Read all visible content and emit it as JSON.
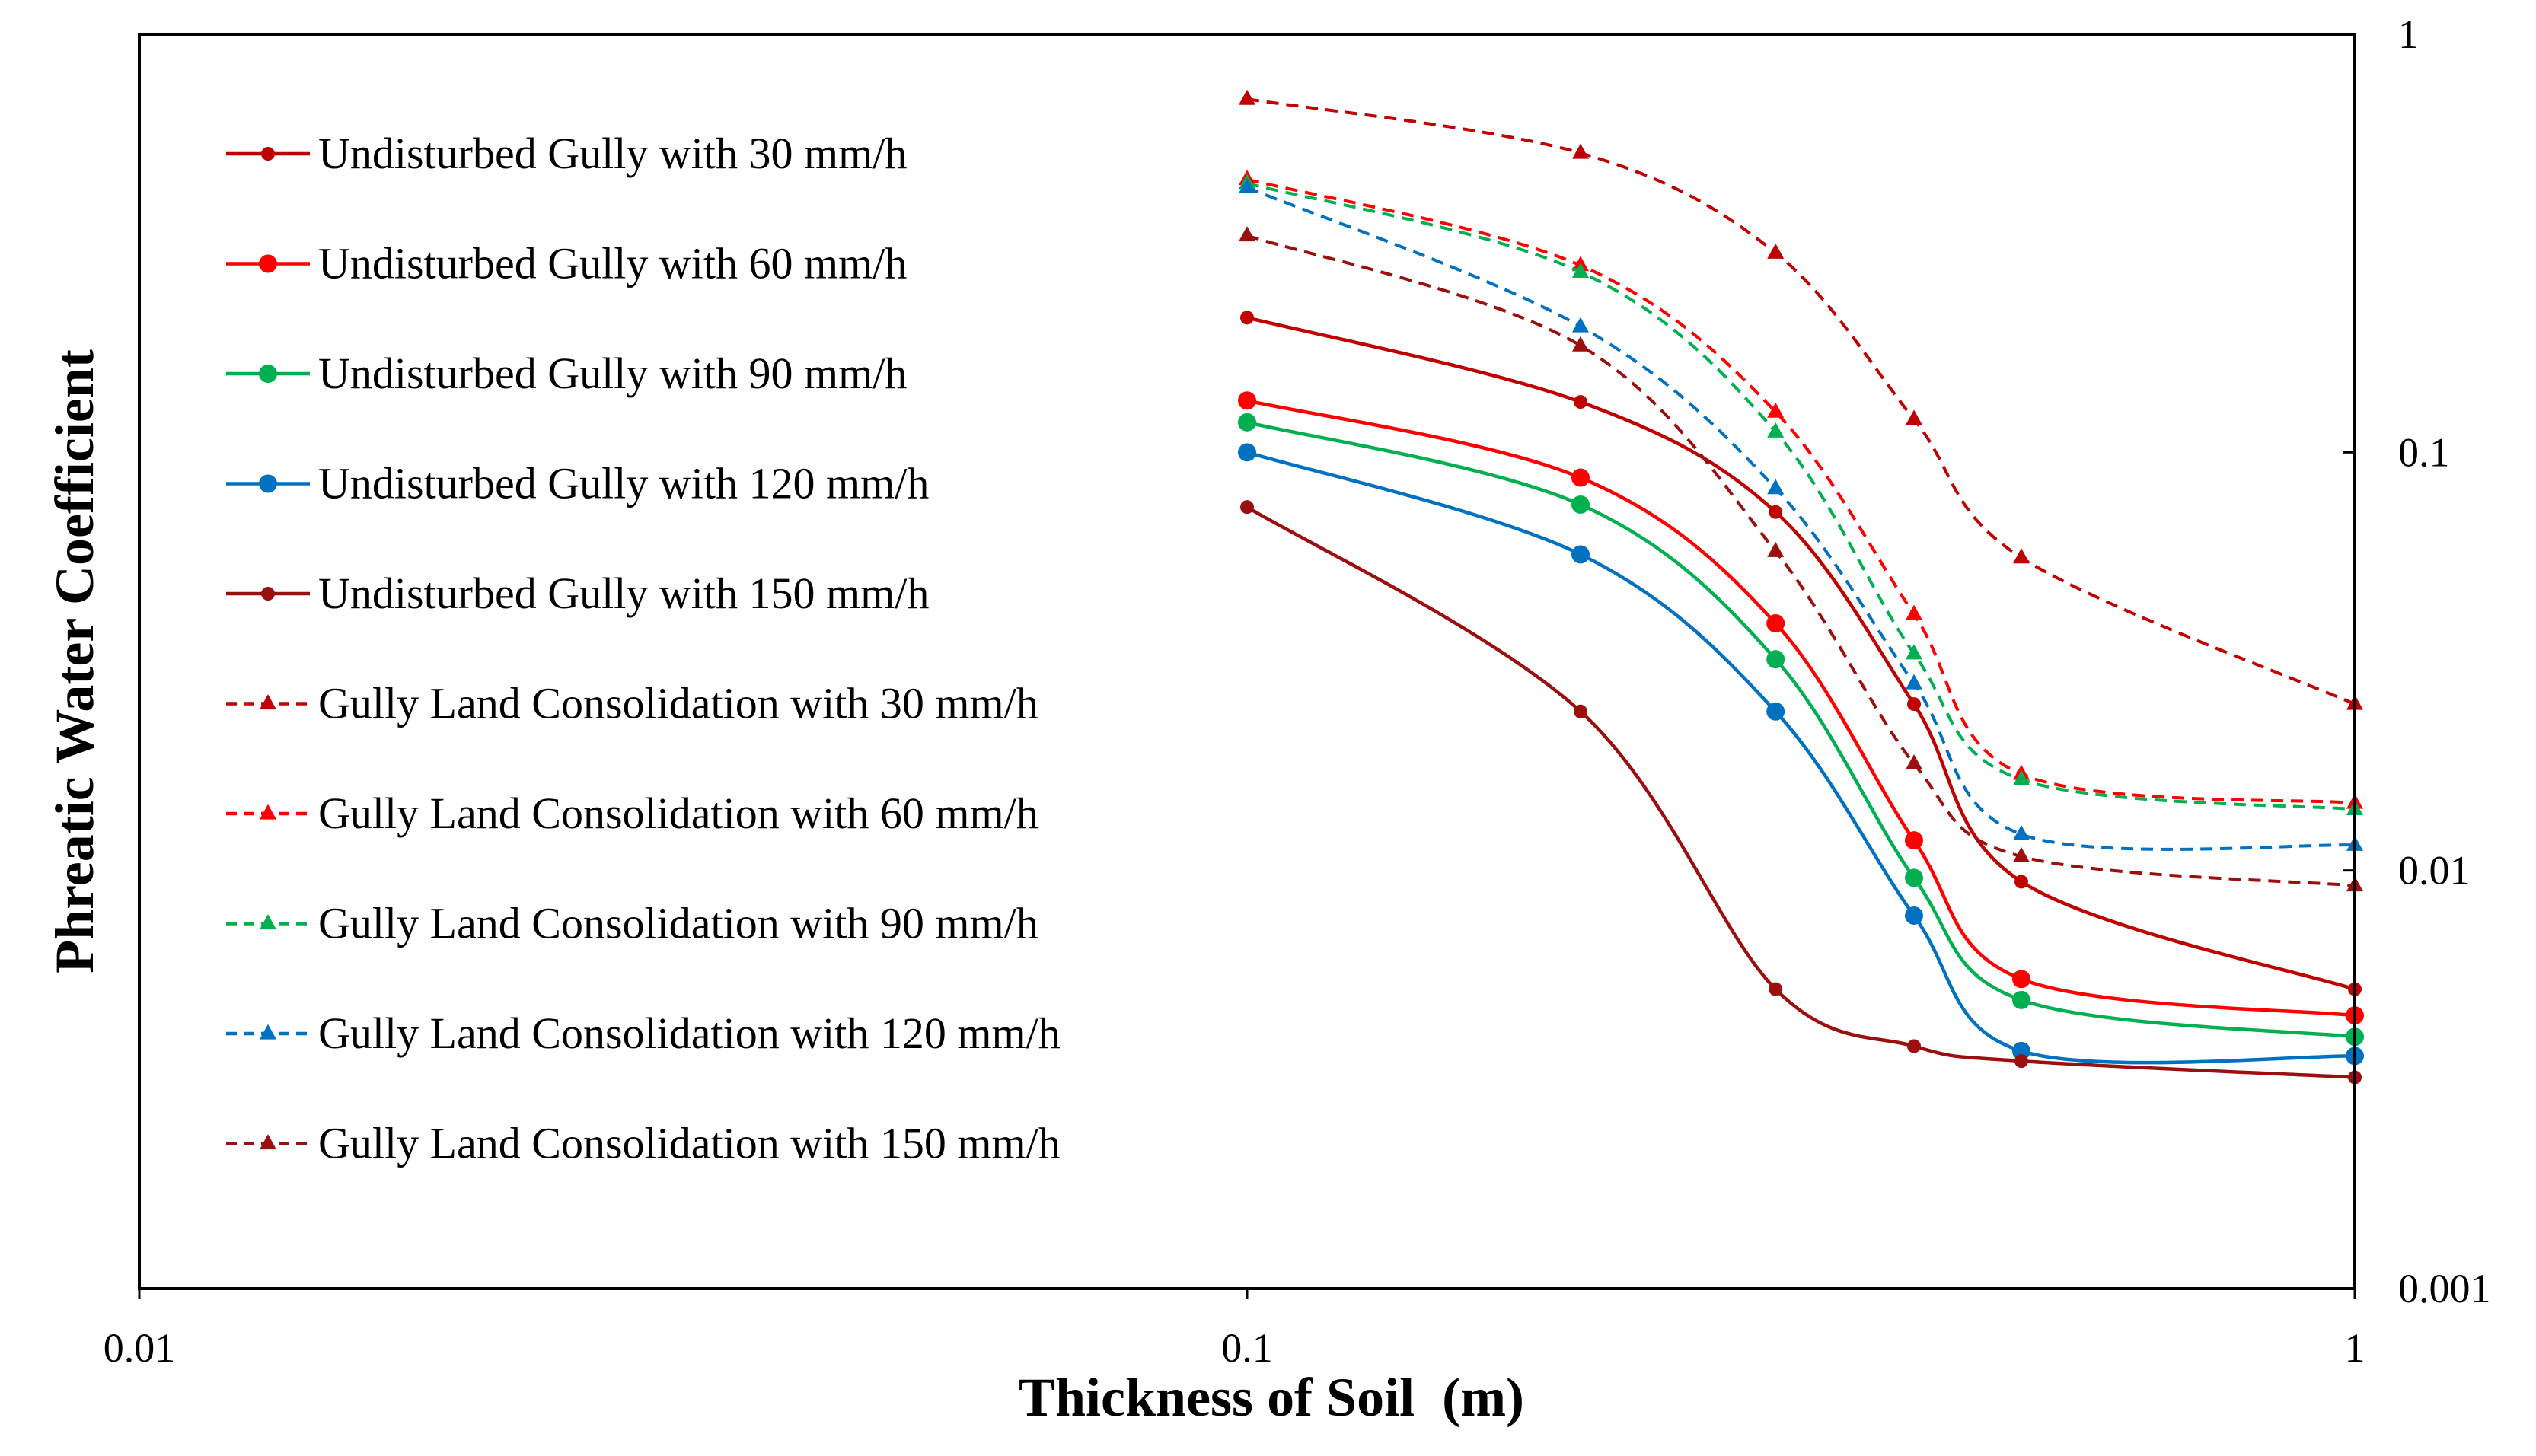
{
  "chart_data": {
    "type": "line",
    "title": "",
    "xlabel": "Thickness of Soil  (m)",
    "ylabel": "Phreatic Water Coefficient",
    "x_scale": "log",
    "y_scale": "log",
    "xlim": [
      0.01,
      1
    ],
    "ylim": [
      0.001,
      1
    ],
    "x_ticks": [
      0.01,
      0.1,
      1
    ],
    "x_tick_labels": [
      "0.01",
      "0.1",
      "1"
    ],
    "y_ticks": [
      0.001,
      0.01,
      0.1,
      1
    ],
    "y_tick_labels": [
      "0.001",
      "0.01",
      "0.1",
      "1"
    ],
    "y_axis_side": "right",
    "grid": false,
    "legend_position": "top-left",
    "x": [
      0.1,
      0.2,
      0.3,
      0.4,
      0.5,
      1.0
    ],
    "series": [
      {
        "name": "Undisturbed Gully with 30 mm/h",
        "color": "#c00000",
        "dashed": false,
        "marker": "circle",
        "marker_size": "small",
        "values": [
          0.21,
          0.132,
          0.072,
          0.025,
          0.0094,
          0.0052
        ]
      },
      {
        "name": "Undisturbed Gully with 60 mm/h",
        "color": "#ff0000",
        "dashed": false,
        "marker": "circle",
        "marker_size": "large",
        "values": [
          0.133,
          0.087,
          0.039,
          0.0118,
          0.0055,
          0.0045
        ]
      },
      {
        "name": "Undisturbed Gully with 90 mm/h",
        "color": "#00b050",
        "dashed": false,
        "marker": "circle",
        "marker_size": "large",
        "values": [
          0.118,
          0.075,
          0.032,
          0.0096,
          0.0049,
          0.004
        ]
      },
      {
        "name": "Undisturbed Gully with 120 mm/h",
        "color": "#0070c0",
        "dashed": false,
        "marker": "circle",
        "marker_size": "large",
        "values": [
          0.1,
          0.057,
          0.024,
          0.0078,
          0.0037,
          0.0036
        ]
      },
      {
        "name": "Undisturbed Gully with 150 mm/h",
        "color": "#9b0f0f",
        "dashed": false,
        "marker": "circle",
        "marker_size": "small",
        "values": [
          0.074,
          0.024,
          0.0052,
          0.0038,
          0.0035,
          0.0032
        ]
      },
      {
        "name": "Gully Land Consolidation with 30 mm/h",
        "color": "#c00000",
        "dashed": true,
        "marker": "triangle",
        "values": [
          0.7,
          0.52,
          0.3,
          0.12,
          0.056,
          0.025
        ]
      },
      {
        "name": "Gully Land Consolidation with 60 mm/h",
        "color": "#ff0000",
        "dashed": true,
        "marker": "triangle",
        "values": [
          0.45,
          0.28,
          0.125,
          0.041,
          0.017,
          0.0145
        ]
      },
      {
        "name": "Gully Land Consolidation with 90 mm/h",
        "color": "#00b050",
        "dashed": true,
        "marker": "triangle",
        "values": [
          0.44,
          0.27,
          0.112,
          0.033,
          0.0165,
          0.014
        ]
      },
      {
        "name": "Gully Land Consolidation with 120 mm/h",
        "color": "#0070c0",
        "dashed": true,
        "marker": "triangle",
        "values": [
          0.43,
          0.2,
          0.082,
          0.028,
          0.0122,
          0.0115
        ]
      },
      {
        "name": "Gully Land Consolidation with 150 mm/h",
        "color": "#9b0f0f",
        "dashed": true,
        "marker": "triangle",
        "values": [
          0.33,
          0.18,
          0.058,
          0.018,
          0.0108,
          0.0092
        ]
      }
    ]
  }
}
